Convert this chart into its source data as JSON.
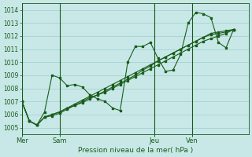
{
  "xlabel": "Pression niveau de la mer( hPa )",
  "bg_color": "#c8e8e8",
  "grid_color": "#a0cccc",
  "line_color": "#1a5c1a",
  "ylim": [
    1004.5,
    1014.5
  ],
  "yticks": [
    1005,
    1006,
    1007,
    1008,
    1009,
    1010,
    1011,
    1012,
    1013,
    1014
  ],
  "day_labels": [
    "Mer",
    "Sam",
    "Jeu",
    "Ven"
  ],
  "total_hours": 120,
  "day_hours": [
    0,
    20,
    70,
    90
  ],
  "series": [
    {
      "y_vals": [
        1007.0,
        1005.5,
        1005.2,
        1006.2,
        1009.0,
        1008.8,
        1008.2,
        1008.3,
        1008.1,
        1007.5,
        1007.2,
        1007.0,
        1006.5,
        1006.3,
        1010.0,
        1011.2,
        1011.2,
        1011.5,
        1010.3,
        1009.3,
        1009.4,
        1010.6,
        1013.0,
        1013.8,
        1013.7,
        1013.4,
        1011.5,
        1011.1,
        1012.5
      ],
      "x_hrs": [
        0,
        4,
        8,
        12,
        16,
        20,
        24,
        28,
        32,
        36,
        40,
        44,
        48,
        52,
        56,
        60,
        64,
        68,
        72,
        76,
        80,
        84,
        88,
        92,
        96,
        100,
        104,
        108,
        112
      ]
    },
    {
      "y_vals": [
        1007.0,
        1005.5,
        1005.2,
        1005.8,
        1006.0,
        1006.2,
        1006.5,
        1006.8,
        1007.1,
        1007.4,
        1007.7,
        1008.0,
        1008.3,
        1008.6,
        1008.9,
        1009.2,
        1009.5,
        1009.8,
        1010.1,
        1010.4,
        1010.7,
        1011.0,
        1011.3,
        1011.6,
        1011.9,
        1012.2,
        1012.3,
        1012.4,
        1012.5
      ],
      "x_hrs": [
        0,
        4,
        8,
        12,
        16,
        20,
        24,
        28,
        32,
        36,
        40,
        44,
        48,
        52,
        56,
        60,
        64,
        68,
        72,
        76,
        80,
        84,
        88,
        92,
        96,
        100,
        104,
        108,
        112
      ]
    },
    {
      "y_vals": [
        1007.0,
        1005.5,
        1005.2,
        1005.8,
        1006.0,
        1006.2,
        1006.5,
        1006.7,
        1007.0,
        1007.3,
        1007.5,
        1007.8,
        1008.1,
        1008.4,
        1008.7,
        1009.0,
        1009.4,
        1009.7,
        1010.1,
        1010.4,
        1010.7,
        1011.0,
        1011.3,
        1011.6,
        1011.9,
        1012.1,
        1012.2,
        1012.3,
        1012.5
      ],
      "x_hrs": [
        0,
        4,
        8,
        12,
        16,
        20,
        24,
        28,
        32,
        36,
        40,
        44,
        48,
        52,
        56,
        60,
        64,
        68,
        72,
        76,
        80,
        84,
        88,
        92,
        96,
        100,
        104,
        108,
        112
      ]
    },
    {
      "y_vals": [
        1007.0,
        1005.5,
        1005.2,
        1005.8,
        1005.9,
        1006.1,
        1006.4,
        1006.7,
        1006.9,
        1007.2,
        1007.5,
        1007.7,
        1008.0,
        1008.3,
        1008.6,
        1008.9,
        1009.2,
        1009.5,
        1009.8,
        1010.1,
        1010.4,
        1010.7,
        1011.0,
        1011.3,
        1011.6,
        1011.8,
        1012.0,
        1012.2,
        1012.5
      ],
      "x_hrs": [
        0,
        4,
        8,
        12,
        16,
        20,
        24,
        28,
        32,
        36,
        40,
        44,
        48,
        52,
        56,
        60,
        64,
        68,
        72,
        76,
        80,
        84,
        88,
        92,
        96,
        100,
        104,
        108,
        112
      ]
    }
  ]
}
